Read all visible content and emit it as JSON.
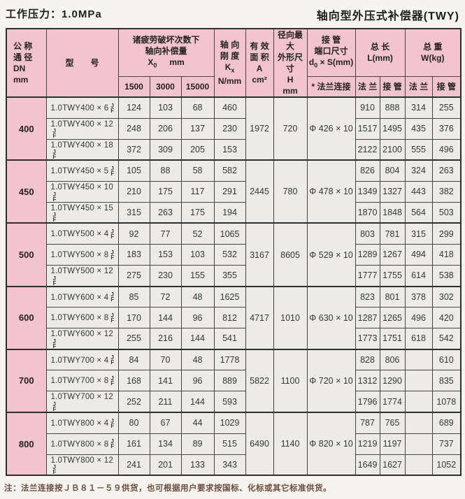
{
  "page": {
    "pressure_label": "工作压力：1.0MPa",
    "product_title": "轴向型外压式补偿器(TWY)",
    "footnote": "注：法兰连接按ＪＢ８１－５９供货，也可根据用户要求按国标、化标或其它标准供货。"
  },
  "colors": {
    "header_pink": "#f2c4cf",
    "cell_bg": "#edebe5",
    "border_dark": "#2e2e2e",
    "note_brown": "#6d4a3a"
  },
  "table": {
    "header": {
      "dn_lines": [
        "公 称",
        "通 径",
        "DN",
        "mm"
      ],
      "model": "型　　号",
      "x0_line1": "诸疲劳破坏次数下",
      "x0_line2": "轴向补偿量",
      "x0_sym_base": "X",
      "x0_sym_sub": "0",
      "x0_unit": "mm",
      "x0_cycles": [
        "1500",
        "3000",
        "15000"
      ],
      "kx_line1": "轴 向",
      "kx_line2": "刚 度",
      "kx_base": "K",
      "kx_sub": "x",
      "kx_unit": "N/mm",
      "a_lines": [
        "有 效",
        "面 积",
        "A",
        "cm²"
      ],
      "h_lines": [
        "径向最大",
        "外形尺寸",
        "H",
        "mm"
      ],
      "d_line1": "接 管",
      "d_line2": "端口尺寸",
      "d_base": "d",
      "d_sub": "0",
      "d_rest": " × S(mm)",
      "d_sub_header": "* 法兰连接",
      "l_title": "总  长",
      "l_unit": "L(mm)",
      "l_subs": [
        "法 兰",
        "接 管"
      ],
      "w_title": "总  重",
      "w_unit": "W(kg)",
      "w_subs": [
        "法 兰",
        "接 管"
      ]
    },
    "model_suffix": {
      "top": "J",
      "bottom": "F"
    },
    "groups": [
      {
        "dn": "400",
        "a": "1972",
        "h": "720",
        "d": "Φ 426 × 10",
        "rows": [
          {
            "model": "1.0TWY400 × 6",
            "x1500": "124",
            "x3000": "103",
            "x15000": "68",
            "kx": "460",
            "l_flange": "910",
            "l_pipe": "888",
            "w_flange": "314",
            "w_pipe": "255"
          },
          {
            "model": "1.0TWY400 × 12",
            "x1500": "248",
            "x3000": "206",
            "x15000": "137",
            "kx": "230",
            "l_flange": "1517",
            "l_pipe": "1495",
            "w_flange": "435",
            "w_pipe": "376"
          },
          {
            "model": "1.0TWY400 × 18",
            "x1500": "372",
            "x3000": "309",
            "x15000": "205",
            "kx": "153",
            "l_flange": "2122",
            "l_pipe": "2100",
            "w_flange": "555",
            "w_pipe": "496"
          }
        ]
      },
      {
        "dn": "450",
        "a": "2445",
        "h": "780",
        "d": "Φ 478 × 10",
        "rows": [
          {
            "model": "1.0TWY450 × 5",
            "x1500": "105",
            "x3000": "88",
            "x15000": "58",
            "kx": "582",
            "l_flange": "826",
            "l_pipe": "804",
            "w_flange": "324",
            "w_pipe": "263"
          },
          {
            "model": "1.0TWY450 × 10",
            "x1500": "210",
            "x3000": "175",
            "x15000": "117",
            "kx": "291",
            "l_flange": "1349",
            "l_pipe": "1327",
            "w_flange": "443",
            "w_pipe": "382"
          },
          {
            "model": "1.0TWY450 × 15",
            "x1500": "315",
            "x3000": "263",
            "x15000": "175",
            "kx": "194",
            "l_flange": "1870",
            "l_pipe": "1848",
            "w_flange": "564",
            "w_pipe": "503"
          }
        ]
      },
      {
        "dn": "500",
        "a": "3167",
        "h": "8605",
        "d": "Φ 529 × 10",
        "rows": [
          {
            "model": "1.0TWY500 × 4",
            "x1500": "92",
            "x3000": "77",
            "x15000": "52",
            "kx": "1065",
            "l_flange": "803",
            "l_pipe": "781",
            "w_flange": "315",
            "w_pipe": "299"
          },
          {
            "model": "1.0TWY500 × 8",
            "x1500": "183",
            "x3000": "153",
            "x15000": "103",
            "kx": "532",
            "l_flange": "1289",
            "l_pipe": "1267",
            "w_flange": "494",
            "w_pipe": "418"
          },
          {
            "model": "1.0TWY500 × 12",
            "x1500": "275",
            "x3000": "230",
            "x15000": "155",
            "kx": "355",
            "l_flange": "1777",
            "l_pipe": "1755",
            "w_flange": "614",
            "w_pipe": "538"
          }
        ]
      },
      {
        "dn": "600",
        "a": "4717",
        "h": "1010",
        "d": "Φ 630 × 10",
        "rows": [
          {
            "model": "1.0TWY600 × 4",
            "x1500": "85",
            "x3000": "72",
            "x15000": "48",
            "kx": "1625",
            "l_flange": "823",
            "l_pipe": "801",
            "w_flange": "378",
            "w_pipe": "302"
          },
          {
            "model": "1.0TWY600 × 8",
            "x1500": "170",
            "x3000": "144",
            "x15000": "96",
            "kx": "812",
            "l_flange": "1287",
            "l_pipe": "1265",
            "w_flange": "496",
            "w_pipe": "420"
          },
          {
            "model": "1.0TWY600 × 12",
            "x1500": "255",
            "x3000": "216",
            "x15000": "144",
            "kx": "541",
            "l_flange": "1773",
            "l_pipe": "1751",
            "w_flange": "618",
            "w_pipe": "542"
          }
        ]
      },
      {
        "dn": "700",
        "a": "5822",
        "h": "1100",
        "d": "Φ 720 × 10",
        "rows": [
          {
            "model": "1.0TWY700 × 4",
            "x1500": "84",
            "x3000": "70",
            "x15000": "48",
            "kx": "1778",
            "l_flange": "828",
            "l_pipe": "806",
            "w_flange": "",
            "w_pipe": "610"
          },
          {
            "model": "1.0TWY700 × 8",
            "x1500": "168",
            "x3000": "141",
            "x15000": "96",
            "kx": "889",
            "l_flange": "1312",
            "l_pipe": "1290",
            "w_flange": "",
            "w_pipe": "835"
          },
          {
            "model": "1.0TWY700 × 12",
            "x1500": "252",
            "x3000": "211",
            "x15000": "144",
            "kx": "593",
            "l_flange": "1796",
            "l_pipe": "1774",
            "w_flange": "",
            "w_pipe": "1078"
          }
        ]
      },
      {
        "dn": "800",
        "a": "6490",
        "h": "1140",
        "d": "Φ 820 × 10",
        "rows": [
          {
            "model": "1.0TWY800 × 4",
            "x1500": "80",
            "x3000": "67",
            "x15000": "44",
            "kx": "1029",
            "l_flange": "787",
            "l_pipe": "765",
            "w_flange": "",
            "w_pipe": "689"
          },
          {
            "model": "1.0TWY800 × 8",
            "x1500": "161",
            "x3000": "134",
            "x15000": "89",
            "kx": "515",
            "l_flange": "1219",
            "l_pipe": "1197",
            "w_flange": "",
            "w_pipe": "737"
          },
          {
            "model": "1.0TWY800 × 12",
            "x1500": "241",
            "x3000": "201",
            "x15000": "133",
            "kx": "343",
            "l_flange": "1649",
            "l_pipe": "1627",
            "w_flange": "",
            "w_pipe": "1052"
          }
        ]
      }
    ]
  }
}
